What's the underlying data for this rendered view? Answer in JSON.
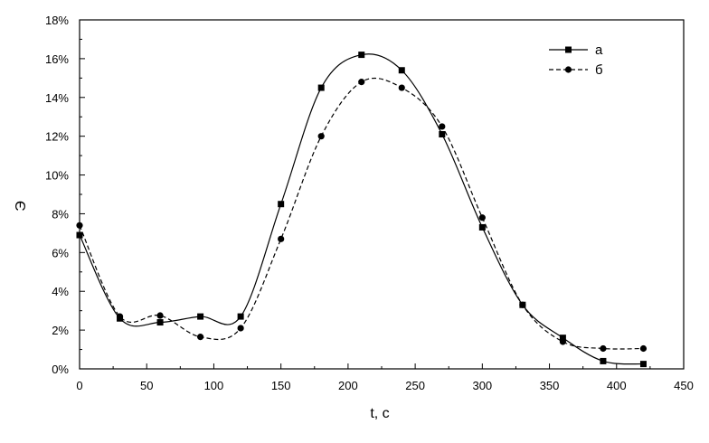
{
  "chart_data": {
    "type": "line",
    "xlabel": "t, c",
    "ylabel": "Э",
    "xlim": [
      0,
      450
    ],
    "ylim": [
      0,
      18
    ],
    "x_ticks": [
      0,
      50,
      100,
      150,
      200,
      250,
      300,
      350,
      400,
      450
    ],
    "y_ticks": [
      0,
      2,
      4,
      6,
      8,
      10,
      12,
      14,
      16,
      18
    ],
    "y_tick_labels": [
      "0%",
      "2%",
      "4%",
      "6%",
      "8%",
      "10%",
      "12%",
      "14%",
      "16%",
      "18%"
    ],
    "x_tick_labels": [
      "0",
      "50",
      "100",
      "150",
      "200",
      "250",
      "300",
      "350",
      "400",
      "450"
    ],
    "grid": false,
    "legend_position": "top-right",
    "series": [
      {
        "name": "а",
        "marker": "square",
        "line_style": "solid",
        "color": "#000000",
        "x": [
          0,
          30,
          60,
          90,
          120,
          150,
          180,
          210,
          240,
          270,
          300,
          330,
          360,
          390,
          420
        ],
        "y": [
          6.9,
          2.6,
          2.4,
          2.7,
          2.7,
          8.5,
          14.5,
          16.2,
          15.4,
          12.1,
          7.3,
          3.3,
          1.6,
          0.4,
          0.25
        ]
      },
      {
        "name": "б",
        "marker": "circle",
        "line_style": "dashed",
        "color": "#000000",
        "x": [
          0,
          30,
          60,
          90,
          120,
          150,
          180,
          210,
          240,
          270,
          300,
          330,
          360,
          390,
          420
        ],
        "y": [
          7.4,
          2.7,
          2.75,
          1.65,
          2.1,
          6.7,
          12.0,
          14.8,
          14.5,
          12.5,
          7.8,
          3.3,
          1.4,
          1.05,
          1.05
        ]
      }
    ]
  }
}
